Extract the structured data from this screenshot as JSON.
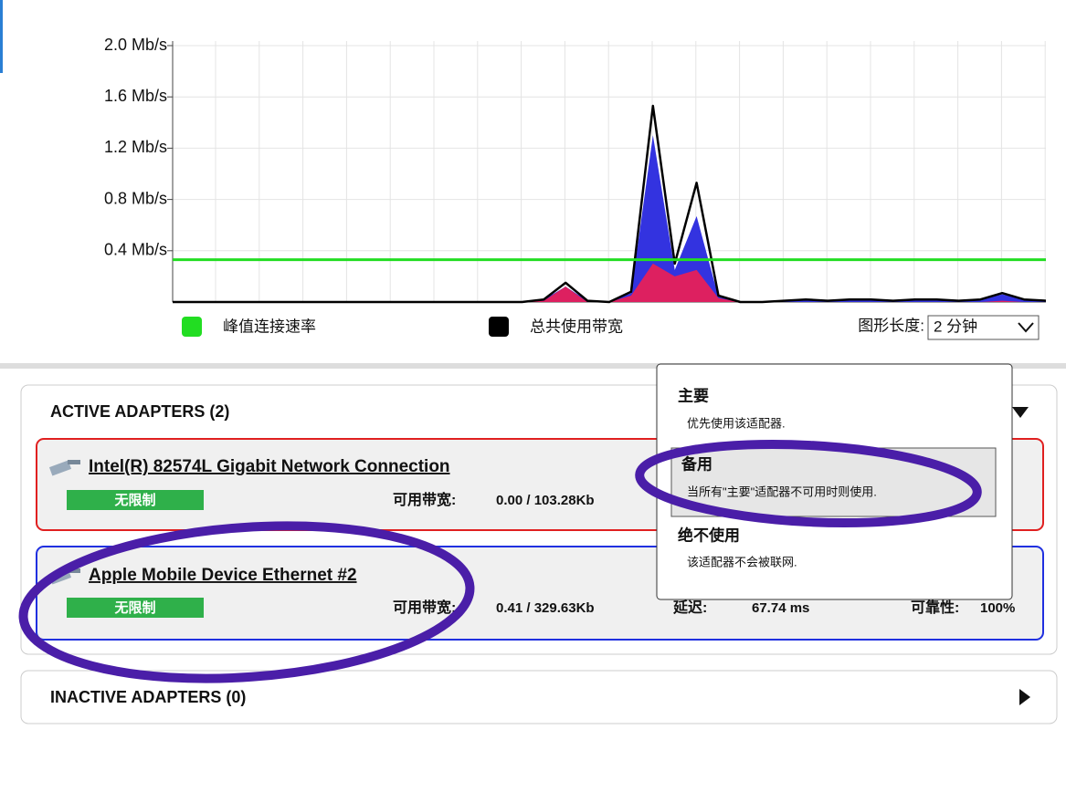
{
  "chart_data": {
    "type": "line",
    "yticks": [
      {
        "value": 0.4,
        "label": "0.4 Mb/s"
      },
      {
        "value": 0.8,
        "label": "0.8 Mb/s"
      },
      {
        "value": 1.2,
        "label": "1.2 Mb/s"
      },
      {
        "value": 1.6,
        "label": "1.6 Mb/s"
      },
      {
        "value": 2.0,
        "label": "2.0 Mb/s"
      }
    ],
    "ylim": [
      0,
      2.0
    ],
    "grid": true,
    "series": [
      {
        "name": "峰值连接速率",
        "color": "#22dd22",
        "values": [
          0.33,
          0.33,
          0.33,
          0.33,
          0.33,
          0.33,
          0.33,
          0.33,
          0.33,
          0.33,
          0.33,
          0.33,
          0.33,
          0.33,
          0.33,
          0.33,
          0.33,
          0.33,
          0.33,
          0.33,
          0.33,
          0.33,
          0.33,
          0.33,
          0.33,
          0.33,
          0.33,
          0.33,
          0.33,
          0.33,
          0.33,
          0.33,
          0.33,
          0.33,
          0.33,
          0.33,
          0.33,
          0.33,
          0.33,
          0.33,
          0.33
        ]
      },
      {
        "name": "总共使用带宽",
        "color": "#000000",
        "values": [
          0,
          0,
          0,
          0,
          0,
          0,
          0,
          0,
          0,
          0,
          0,
          0,
          0,
          0,
          0,
          0,
          0,
          0.02,
          0.15,
          0.01,
          0,
          0.08,
          1.53,
          0.3,
          0.93,
          0.05,
          0,
          0,
          0.01,
          0.02,
          0.01,
          0.02,
          0.02,
          0.01,
          0.02,
          0.02,
          0.01,
          0.02,
          0.07,
          0.02,
          0.01
        ]
      },
      {
        "color": "#3333e0",
        "area": true,
        "values": [
          0,
          0,
          0,
          0,
          0,
          0,
          0,
          0,
          0,
          0,
          0,
          0,
          0,
          0,
          0,
          0,
          0,
          0.02,
          0.12,
          0.01,
          0,
          0.07,
          1.3,
          0.25,
          0.67,
          0.04,
          0,
          0,
          0.01,
          0.02,
          0.01,
          0.02,
          0.02,
          0.01,
          0.02,
          0.02,
          0.01,
          0.02,
          0.06,
          0.02,
          0.01
        ]
      },
      {
        "color": "#dd2060",
        "area": true,
        "values": [
          0,
          0,
          0,
          0,
          0,
          0,
          0,
          0,
          0,
          0,
          0,
          0,
          0,
          0,
          0,
          0,
          0,
          0.01,
          0.12,
          0,
          0,
          0.05,
          0.3,
          0.2,
          0.25,
          0.03,
          0,
          0,
          0,
          0,
          0,
          0,
          0,
          0,
          0,
          0,
          0,
          0,
          0.01,
          0,
          0
        ]
      }
    ]
  },
  "graph_length": {
    "label": "图形长度:",
    "value": "2 分钟"
  },
  "active_adapters": {
    "title": "ACTIVE ADAPTERS (2)",
    "adapters": [
      {
        "name": "Intel(R) 82574L Gigabit Network Connection",
        "limit": "无限制",
        "bandwidth_label": "可用带宽:",
        "bandwidth": "0.00 / 103.28Kb"
      },
      {
        "name": "Apple Mobile Device Ethernet #2",
        "limit": "无限制",
        "bandwidth_label": "可用带宽:",
        "bandwidth": "0.41 / 329.63Kb",
        "latency_label": "延迟:",
        "latency": "67.74 ms",
        "reliability_label": "可靠性:",
        "reliability": "100%"
      }
    ]
  },
  "priority_menu": {
    "options": [
      {
        "title": "主要",
        "description": "优先使用该适配器."
      },
      {
        "title": "备用",
        "description": "当所有\"主要\"适配器不可用时则使用."
      },
      {
        "title": "绝不使用",
        "description": "该适配器不会被联网."
      }
    ]
  },
  "inactive_adapters": {
    "title": "INACTIVE ADAPTERS (0)"
  }
}
